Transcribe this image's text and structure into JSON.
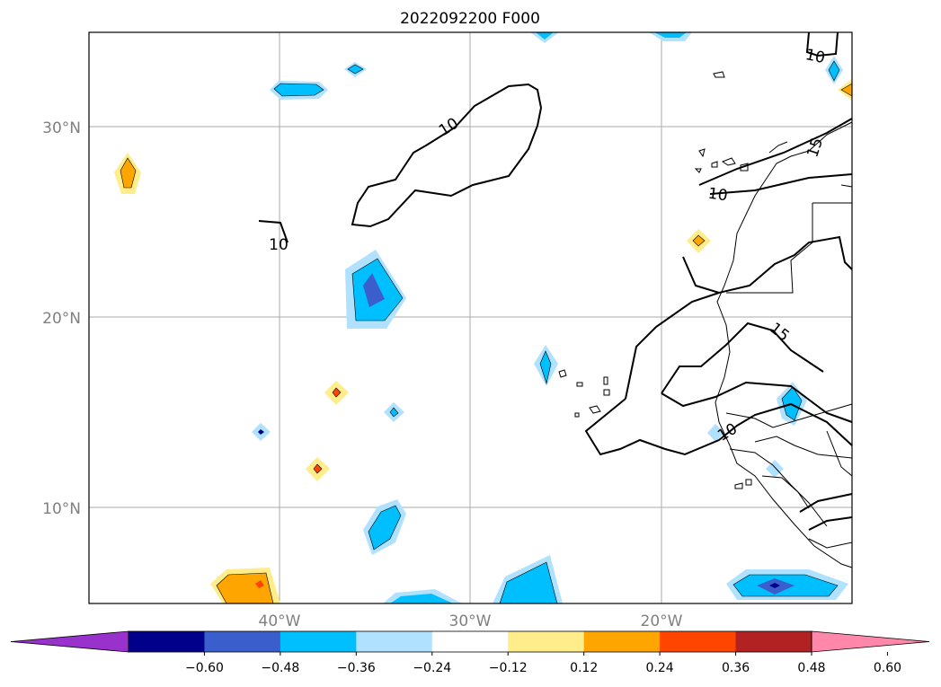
{
  "map": {
    "title": "2022092200 F000",
    "lat_labels": [
      "30°N",
      "20°N",
      "10°N"
    ],
    "lon_labels": [
      "40°W",
      "30°W",
      "20°W"
    ],
    "contour_labels": [
      "10",
      "10",
      "10",
      "15",
      "15",
      "10",
      "10"
    ]
  },
  "colorbar": {
    "tick_labels": [
      "−0.60",
      "−0.48",
      "−0.36",
      "−0.24",
      "−0.12",
      "0.12",
      "0.24",
      "0.36",
      "0.48",
      "0.60"
    ],
    "colors": [
      "#9932cc",
      "#00008b",
      "#3a5fcd",
      "#00bfff",
      "#b0e2ff",
      "#ffffff",
      "#ffec8b",
      "#ffa500",
      "#ff4500",
      "#b22222",
      "#ff88aa"
    ]
  }
}
